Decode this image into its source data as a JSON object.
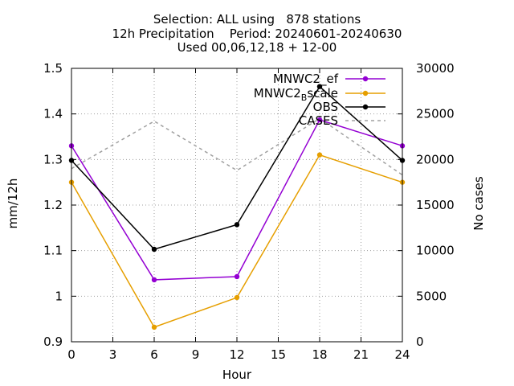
{
  "chart_data": {
    "type": "line",
    "title_lines": [
      "Selection: ALL using   878 stations",
      "12h Precipitation    Period: 20240601-20240630",
      "Used 00,06,12,18 + 12-00"
    ],
    "xlabel": "Hour",
    "ylabel": "mm/12h",
    "y2label": "No cases",
    "xlim": [
      0,
      24
    ],
    "ylim": [
      0.9,
      1.5
    ],
    "y2lim": [
      0,
      30000
    ],
    "x_ticks": [
      "0",
      "3",
      "6",
      "9",
      "12",
      "15",
      "18",
      "21",
      "24"
    ],
    "y_ticks": [
      "0.9",
      "1",
      "1.1",
      "1.2",
      "1.3",
      "1.4",
      "1.5"
    ],
    "y2_ticks": [
      "0",
      "5000",
      "10000",
      "15000",
      "20000",
      "25000",
      "30000"
    ],
    "grid": true,
    "legend_position": "top-right",
    "x": [
      0,
      6,
      12,
      18,
      24
    ],
    "series": [
      {
        "name": "MNWC2_ef",
        "legend_main": "MNWC2_ef",
        "legend_sub": "",
        "color": "#9400d3",
        "axis": "y1",
        "marker": "circle",
        "dashed": false,
        "values": [
          1.33,
          1.036,
          1.043,
          1.387,
          1.33
        ]
      },
      {
        "name": "MNWC2_Bscale",
        "legend_main": "MNWC2",
        "legend_sub": "B",
        "legend_tail": "scale",
        "color": "#e69f00",
        "axis": "y1",
        "marker": "circle",
        "dashed": false,
        "values": [
          1.25,
          0.932,
          0.997,
          1.31,
          1.25
        ]
      },
      {
        "name": "OBS",
        "legend_main": "OBS",
        "legend_sub": "",
        "color": "#000000",
        "axis": "y1",
        "marker": "circle",
        "dashed": false,
        "values": [
          1.298,
          1.103,
          1.157,
          1.46,
          1.298
        ]
      },
      {
        "name": "CASES",
        "legend_main": "CASES",
        "legend_sub": "",
        "color": "#a0a0a0",
        "axis": "y2",
        "marker": "none",
        "dashed": true,
        "values": [
          19000,
          24200,
          18800,
          24500,
          18300
        ]
      }
    ]
  }
}
